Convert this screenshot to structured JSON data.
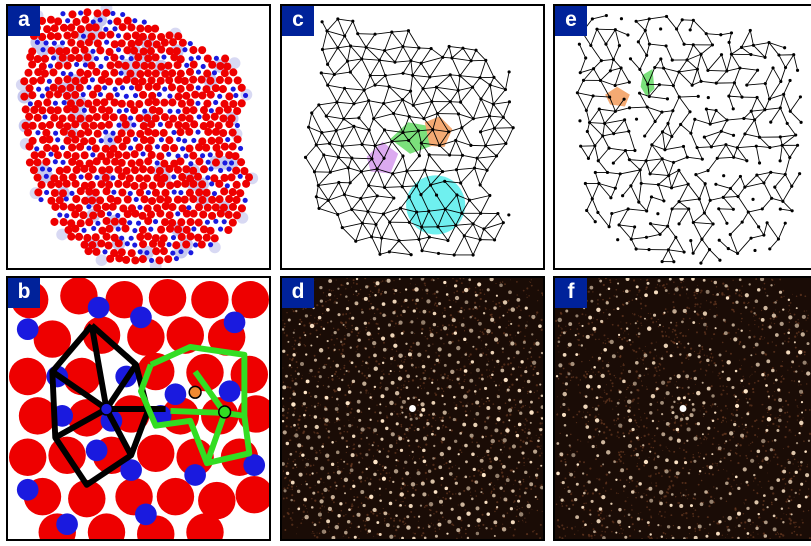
{
  "panels": [
    {
      "id": "a",
      "label": "a"
    },
    {
      "id": "b",
      "label": "b"
    },
    {
      "id": "c",
      "label": "c"
    },
    {
      "id": "d",
      "label": "d"
    },
    {
      "id": "e",
      "label": "e"
    },
    {
      "id": "f",
      "label": "f"
    }
  ],
  "colors": {
    "tag_background": "#00229a",
    "large_particle": "#ee0000",
    "small_particle": "#1a1adf",
    "particle_halo": "#c7c9ee",
    "tiling_edge": "#000000",
    "tile_green": "#7be07b",
    "tile_orange": "#f4aa73",
    "tile_purple": "#dcaaf0",
    "tile_cyan": "#6ff0ef",
    "outline_black": "#000000",
    "outline_green": "#33dd22",
    "marker_orange": "#f08a30",
    "marker_green": "#33dd22",
    "diffraction_background": "#1a0c06",
    "diffraction_spot": "#ffe6c8"
  }
}
